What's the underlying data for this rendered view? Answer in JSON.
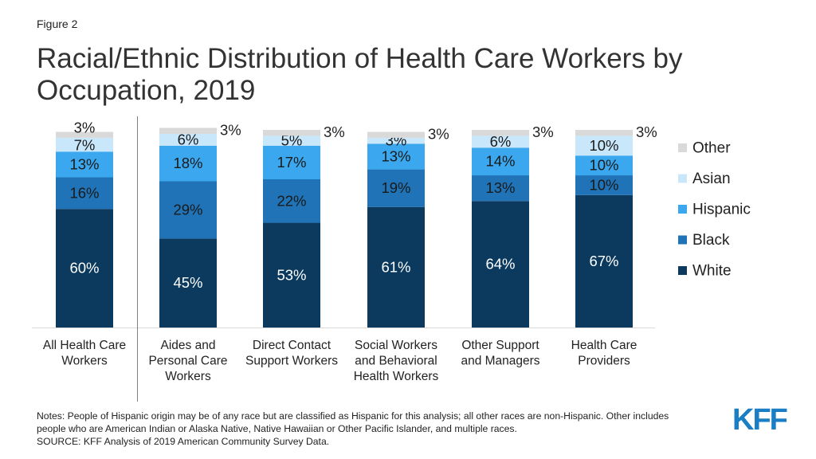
{
  "figure_label": "Figure 2",
  "title": "Racial/Ethnic Distribution of Health Care Workers by Occupation, 2019",
  "notes": [
    "Notes: People of Hispanic origin may be of any race but are classified as Hispanic for this analysis; all other races are non-Hispanic. Other includes",
    "people who are American Indian or Alaska Native, Native Hawaiian or Other Pacific Islander, and multiple races."
  ],
  "source": "SOURCE: KFF Analysis of 2019 American Community Survey Data.",
  "logo_text": "KFF",
  "colors": {
    "White": "#0b3a5e",
    "Black": "#1f73b6",
    "Hispanic": "#3ba7ee",
    "Asian": "#c9e7fb",
    "Other": "#d9d9d9",
    "logo": "#1a7ec4"
  },
  "chart_data": {
    "type": "bar",
    "stacked": true,
    "orientation": "vertical",
    "categories": [
      "All Health Care Workers",
      "Aides and Personal Care Workers",
      "Direct Contact Support Workers",
      "Social Workers and Behavioral Health Workers",
      "Other Support and Managers",
      "Health Care Providers"
    ],
    "category_label_lines": [
      [
        "All Health Care",
        "Workers"
      ],
      [
        "Aides and",
        "Personal Care",
        "Workers"
      ],
      [
        "Direct Contact",
        "Support Workers"
      ],
      [
        "Social Workers",
        "and Behavioral",
        "Health Workers"
      ],
      [
        "Other Support",
        "and Managers"
      ],
      [
        "Health Care",
        "Providers"
      ]
    ],
    "series": [
      {
        "name": "White",
        "values": [
          60,
          45,
          53,
          61,
          64,
          67
        ]
      },
      {
        "name": "Black",
        "values": [
          16,
          29,
          22,
          19,
          13,
          10
        ]
      },
      {
        "name": "Hispanic",
        "values": [
          13,
          18,
          17,
          13,
          14,
          10
        ]
      },
      {
        "name": "Asian",
        "values": [
          7,
          6,
          5,
          3,
          6,
          10
        ]
      },
      {
        "name": "Other",
        "values": [
          3,
          3,
          3,
          3,
          3,
          3
        ]
      }
    ],
    "ylim": [
      0,
      100
    ],
    "legend_position": "right",
    "legend_order": [
      "Other",
      "Asian",
      "Hispanic",
      "Black",
      "White"
    ],
    "grid": false,
    "xlabel": "",
    "ylabel": ""
  }
}
